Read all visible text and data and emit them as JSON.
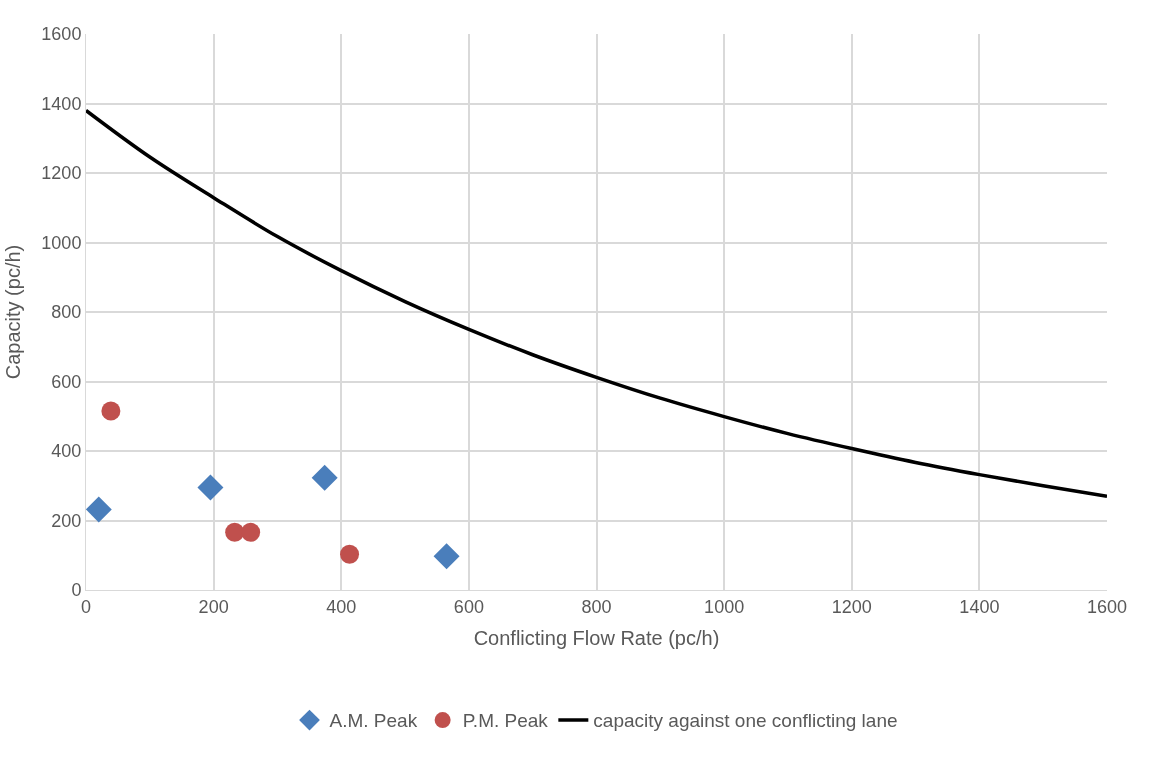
{
  "chart_data": {
    "type": "scatter",
    "xlabel": "Conflicting Flow Rate (pc/h)",
    "ylabel": "Capacity (pc/h)",
    "xlim": [
      0,
      1600
    ],
    "xticks": [
      0,
      200,
      400,
      600,
      800,
      1000,
      1200,
      1400,
      1600
    ],
    "ylim": [
      0,
      1600
    ],
    "yticks": [
      0,
      200,
      400,
      600,
      800,
      1000,
      1200,
      1400,
      1600
    ],
    "grid": true,
    "legend": "bottom",
    "series": [
      {
        "name": "A.M. Peak",
        "color": "#4a7ebb",
        "marker": "diamond",
        "x": [
          20,
          195,
          374,
          565
        ],
        "values": [
          232,
          295,
          323,
          97
        ]
      },
      {
        "name": "P.M. Peak",
        "color": "#c0504d",
        "marker": "circle",
        "x": [
          39,
          233,
          258,
          413
        ],
        "values": [
          515,
          166,
          166,
          103
        ]
      },
      {
        "name": "capacity against one conflicting lane",
        "type": "line",
        "color": "#000000",
        "marker": "none",
        "x": [
          0,
          100,
          200,
          300,
          400,
          500,
          600,
          700,
          800,
          900,
          1000,
          1100,
          1200,
          1300,
          1400,
          1500,
          1600
        ],
        "values": [
          1380,
          1246,
          1129,
          1017,
          919,
          830,
          750,
          677,
          612,
          552,
          499,
          450,
          407,
          367,
          332,
          300,
          270
        ]
      }
    ]
  }
}
